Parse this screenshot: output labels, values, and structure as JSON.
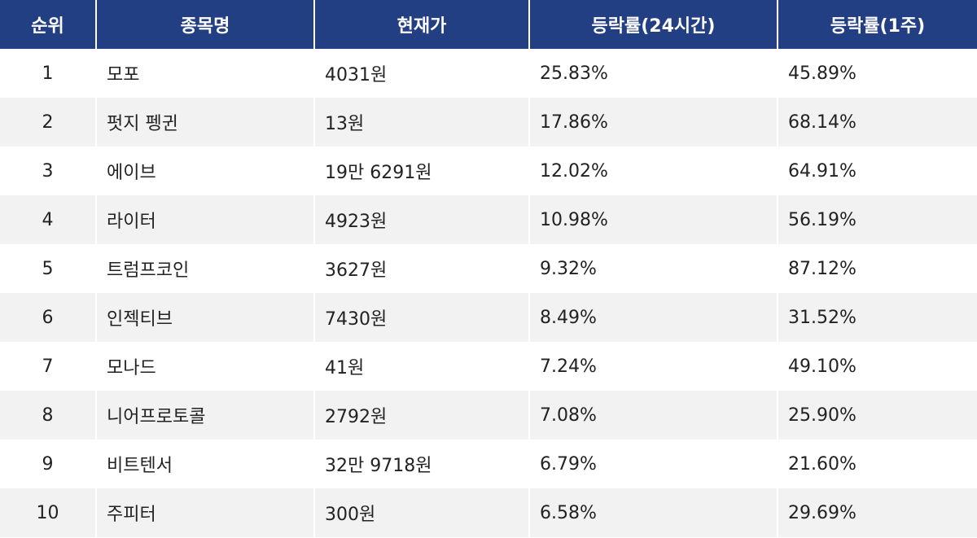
{
  "table": {
    "header": [
      "순위",
      "종목명",
      "현재가",
      "등락률(24시간)",
      "등락률(1주)"
    ],
    "rows": [
      [
        "1",
        "모포",
        "4031원",
        "25.83%",
        "45.89%"
      ],
      [
        "2",
        "펏지 펭귄",
        "13원",
        "17.86%",
        "68.14%"
      ],
      [
        "3",
        "에이브",
        "19만 6291원",
        "12.02%",
        "64.91%"
      ],
      [
        "4",
        "라이터",
        "4923원",
        "10.98%",
        "56.19%"
      ],
      [
        "5",
        "트럼프코인",
        "3627원",
        "9.32%",
        "87.12%"
      ],
      [
        "6",
        "인젝티브",
        "7430원",
        "8.49%",
        "31.52%"
      ],
      [
        "7",
        "모나드",
        "41원",
        "7.24%",
        "49.10%"
      ],
      [
        "8",
        "니어프로토콜",
        "2792원",
        "7.08%",
        "25.90%"
      ],
      [
        "9",
        "비트텐서",
        "32만 9718원",
        "6.79%",
        "21.60%"
      ],
      [
        "10",
        "주피터",
        "300원",
        "6.58%",
        "29.69%"
      ]
    ]
  }
}
